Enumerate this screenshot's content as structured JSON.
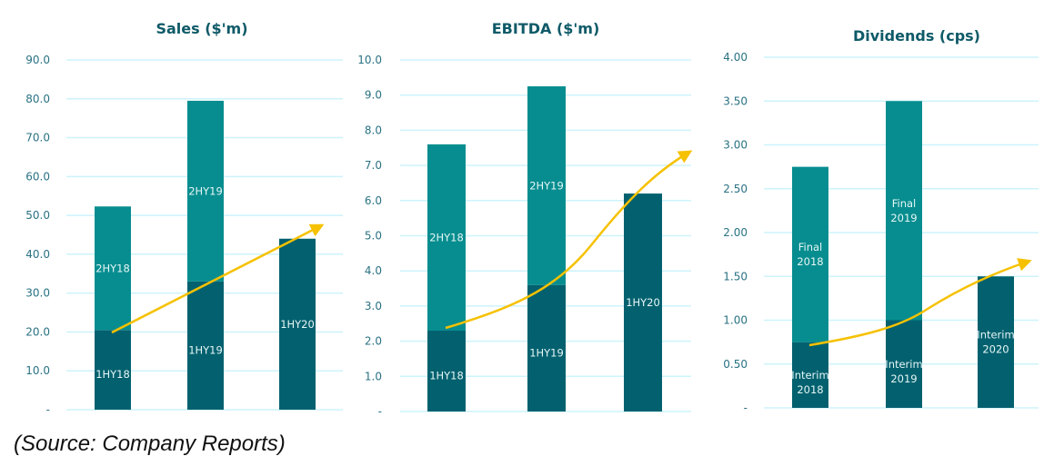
{
  "colors": {
    "first_half": "#03616f",
    "second_half": "#078d8f",
    "grid": "#cdf3fb",
    "trend": "#f6c100"
  },
  "chart_data": [
    {
      "type": "bar",
      "stacked": true,
      "title": "Sales ($'m)",
      "ylim": [
        0,
        90
      ],
      "yticks": [
        "-",
        "10.0",
        "20.0",
        "30.0",
        "40.0",
        "50.0",
        "60.0",
        "70.0",
        "80.0",
        "90.0"
      ],
      "bars": [
        {
          "segments": [
            {
              "label": "1HY18",
              "value": 20.5
            },
            {
              "label": "2HY18",
              "value": 31.8
            }
          ]
        },
        {
          "segments": [
            {
              "label": "1HY19",
              "value": 33.0
            },
            {
              "label": "2HY19",
              "value": 46.5
            }
          ]
        },
        {
          "segments": [
            {
              "label": "1HY20",
              "value": 44.0
            }
          ]
        }
      ],
      "trend": "upward arrow"
    },
    {
      "type": "bar",
      "stacked": true,
      "title": "EBITDA ($'m)",
      "ylim": [
        0,
        10
      ],
      "yticks": [
        "-",
        "1.0",
        "2.0",
        "3.0",
        "4.0",
        "5.0",
        "6.0",
        "7.0",
        "8.0",
        "9.0",
        "10.0"
      ],
      "bars": [
        {
          "segments": [
            {
              "label": "1HY18",
              "value": 2.3
            },
            {
              "label": "2HY18",
              "value": 5.3
            }
          ]
        },
        {
          "segments": [
            {
              "label": "1HY19",
              "value": 3.6
            },
            {
              "label": "2HY19",
              "value": 5.65
            }
          ]
        },
        {
          "segments": [
            {
              "label": "1HY20",
              "value": 6.2
            }
          ]
        }
      ],
      "trend": "upward arrow"
    },
    {
      "type": "bar",
      "stacked": true,
      "title": "Dividends (cps)",
      "ylim": [
        0,
        4
      ],
      "yticks": [
        "-",
        "0.50",
        "1.00",
        "1.50",
        "2.00",
        "2.50",
        "3.00",
        "3.50",
        "4.00"
      ],
      "bars": [
        {
          "segments": [
            {
              "label": "Interim 2018",
              "value": 0.75
            },
            {
              "label": "Final 2018",
              "value": 2.0
            }
          ]
        },
        {
          "segments": [
            {
              "label": "Interim 2019",
              "value": 1.0
            },
            {
              "label": "Final 2019",
              "value": 2.5
            }
          ]
        },
        {
          "segments": [
            {
              "label": "Interim 2020",
              "value": 1.5
            }
          ]
        }
      ],
      "trend": "upward arrow"
    }
  ],
  "source": "(Source: Company Reports)"
}
